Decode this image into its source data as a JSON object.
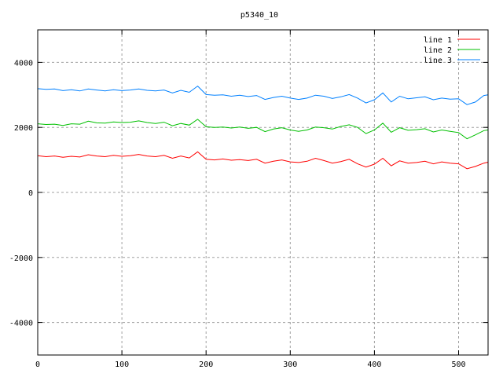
{
  "chart_data": {
    "type": "line",
    "title": "p5340_10",
    "xlabel": "",
    "ylabel": "",
    "xlim": [
      0,
      535
    ],
    "ylim": [
      -5000,
      5000
    ],
    "xticks": [
      0,
      100,
      200,
      300,
      400,
      500
    ],
    "yticks": [
      -4000,
      -2000,
      0,
      2000,
      4000
    ],
    "grid": true,
    "legend_position": "top-right",
    "x": [
      0,
      10,
      20,
      30,
      40,
      50,
      60,
      70,
      80,
      90,
      100,
      110,
      120,
      130,
      140,
      150,
      160,
      170,
      180,
      190,
      200,
      210,
      220,
      230,
      240,
      250,
      260,
      270,
      280,
      290,
      300,
      310,
      320,
      330,
      340,
      350,
      360,
      370,
      380,
      390,
      400,
      410,
      420,
      430,
      440,
      450,
      460,
      470,
      480,
      490,
      500,
      510,
      520,
      530,
      535
    ],
    "series": [
      {
        "name": "line 1",
        "color": "#ff0000",
        "values": [
          1130,
          1100,
          1120,
          1080,
          1110,
          1090,
          1160,
          1120,
          1100,
          1140,
          1110,
          1130,
          1170,
          1120,
          1100,
          1140,
          1050,
          1120,
          1060,
          1250,
          1020,
          1000,
          1030,
          990,
          1010,
          980,
          1020,
          900,
          960,
          1000,
          940,
          920,
          960,
          1050,
          980,
          900,
          950,
          1020,
          880,
          780,
          870,
          1050,
          820,
          970,
          900,
          920,
          960,
          880,
          940,
          900,
          880,
          730,
          800,
          900,
          930
        ]
      },
      {
        "name": "line 2",
        "color": "#00c000",
        "values": [
          2110,
          2090,
          2100,
          2060,
          2110,
          2100,
          2190,
          2140,
          2130,
          2170,
          2150,
          2160,
          2200,
          2150,
          2120,
          2160,
          2050,
          2120,
          2070,
          2250,
          2020,
          2000,
          2010,
          1980,
          2010,
          1970,
          2000,
          1870,
          1950,
          1990,
          1920,
          1880,
          1920,
          2010,
          1990,
          1950,
          2030,
          2080,
          2000,
          1810,
          1920,
          2130,
          1850,
          1990,
          1910,
          1930,
          1960,
          1860,
          1920,
          1880,
          1840,
          1650,
          1770,
          1900,
          1920
        ]
      },
      {
        "name": "line 3",
        "color": "#0080ff",
        "values": [
          3190,
          3170,
          3180,
          3130,
          3160,
          3120,
          3180,
          3150,
          3120,
          3160,
          3130,
          3150,
          3180,
          3140,
          3120,
          3150,
          3060,
          3140,
          3080,
          3270,
          3010,
          2990,
          3000,
          2960,
          2990,
          2950,
          2980,
          2860,
          2920,
          2960,
          2900,
          2860,
          2900,
          2990,
          2960,
          2890,
          2940,
          3010,
          2900,
          2750,
          2850,
          3060,
          2780,
          2960,
          2880,
          2910,
          2940,
          2850,
          2900,
          2870,
          2880,
          2700,
          2780,
          2980,
          3000
        ]
      }
    ]
  }
}
